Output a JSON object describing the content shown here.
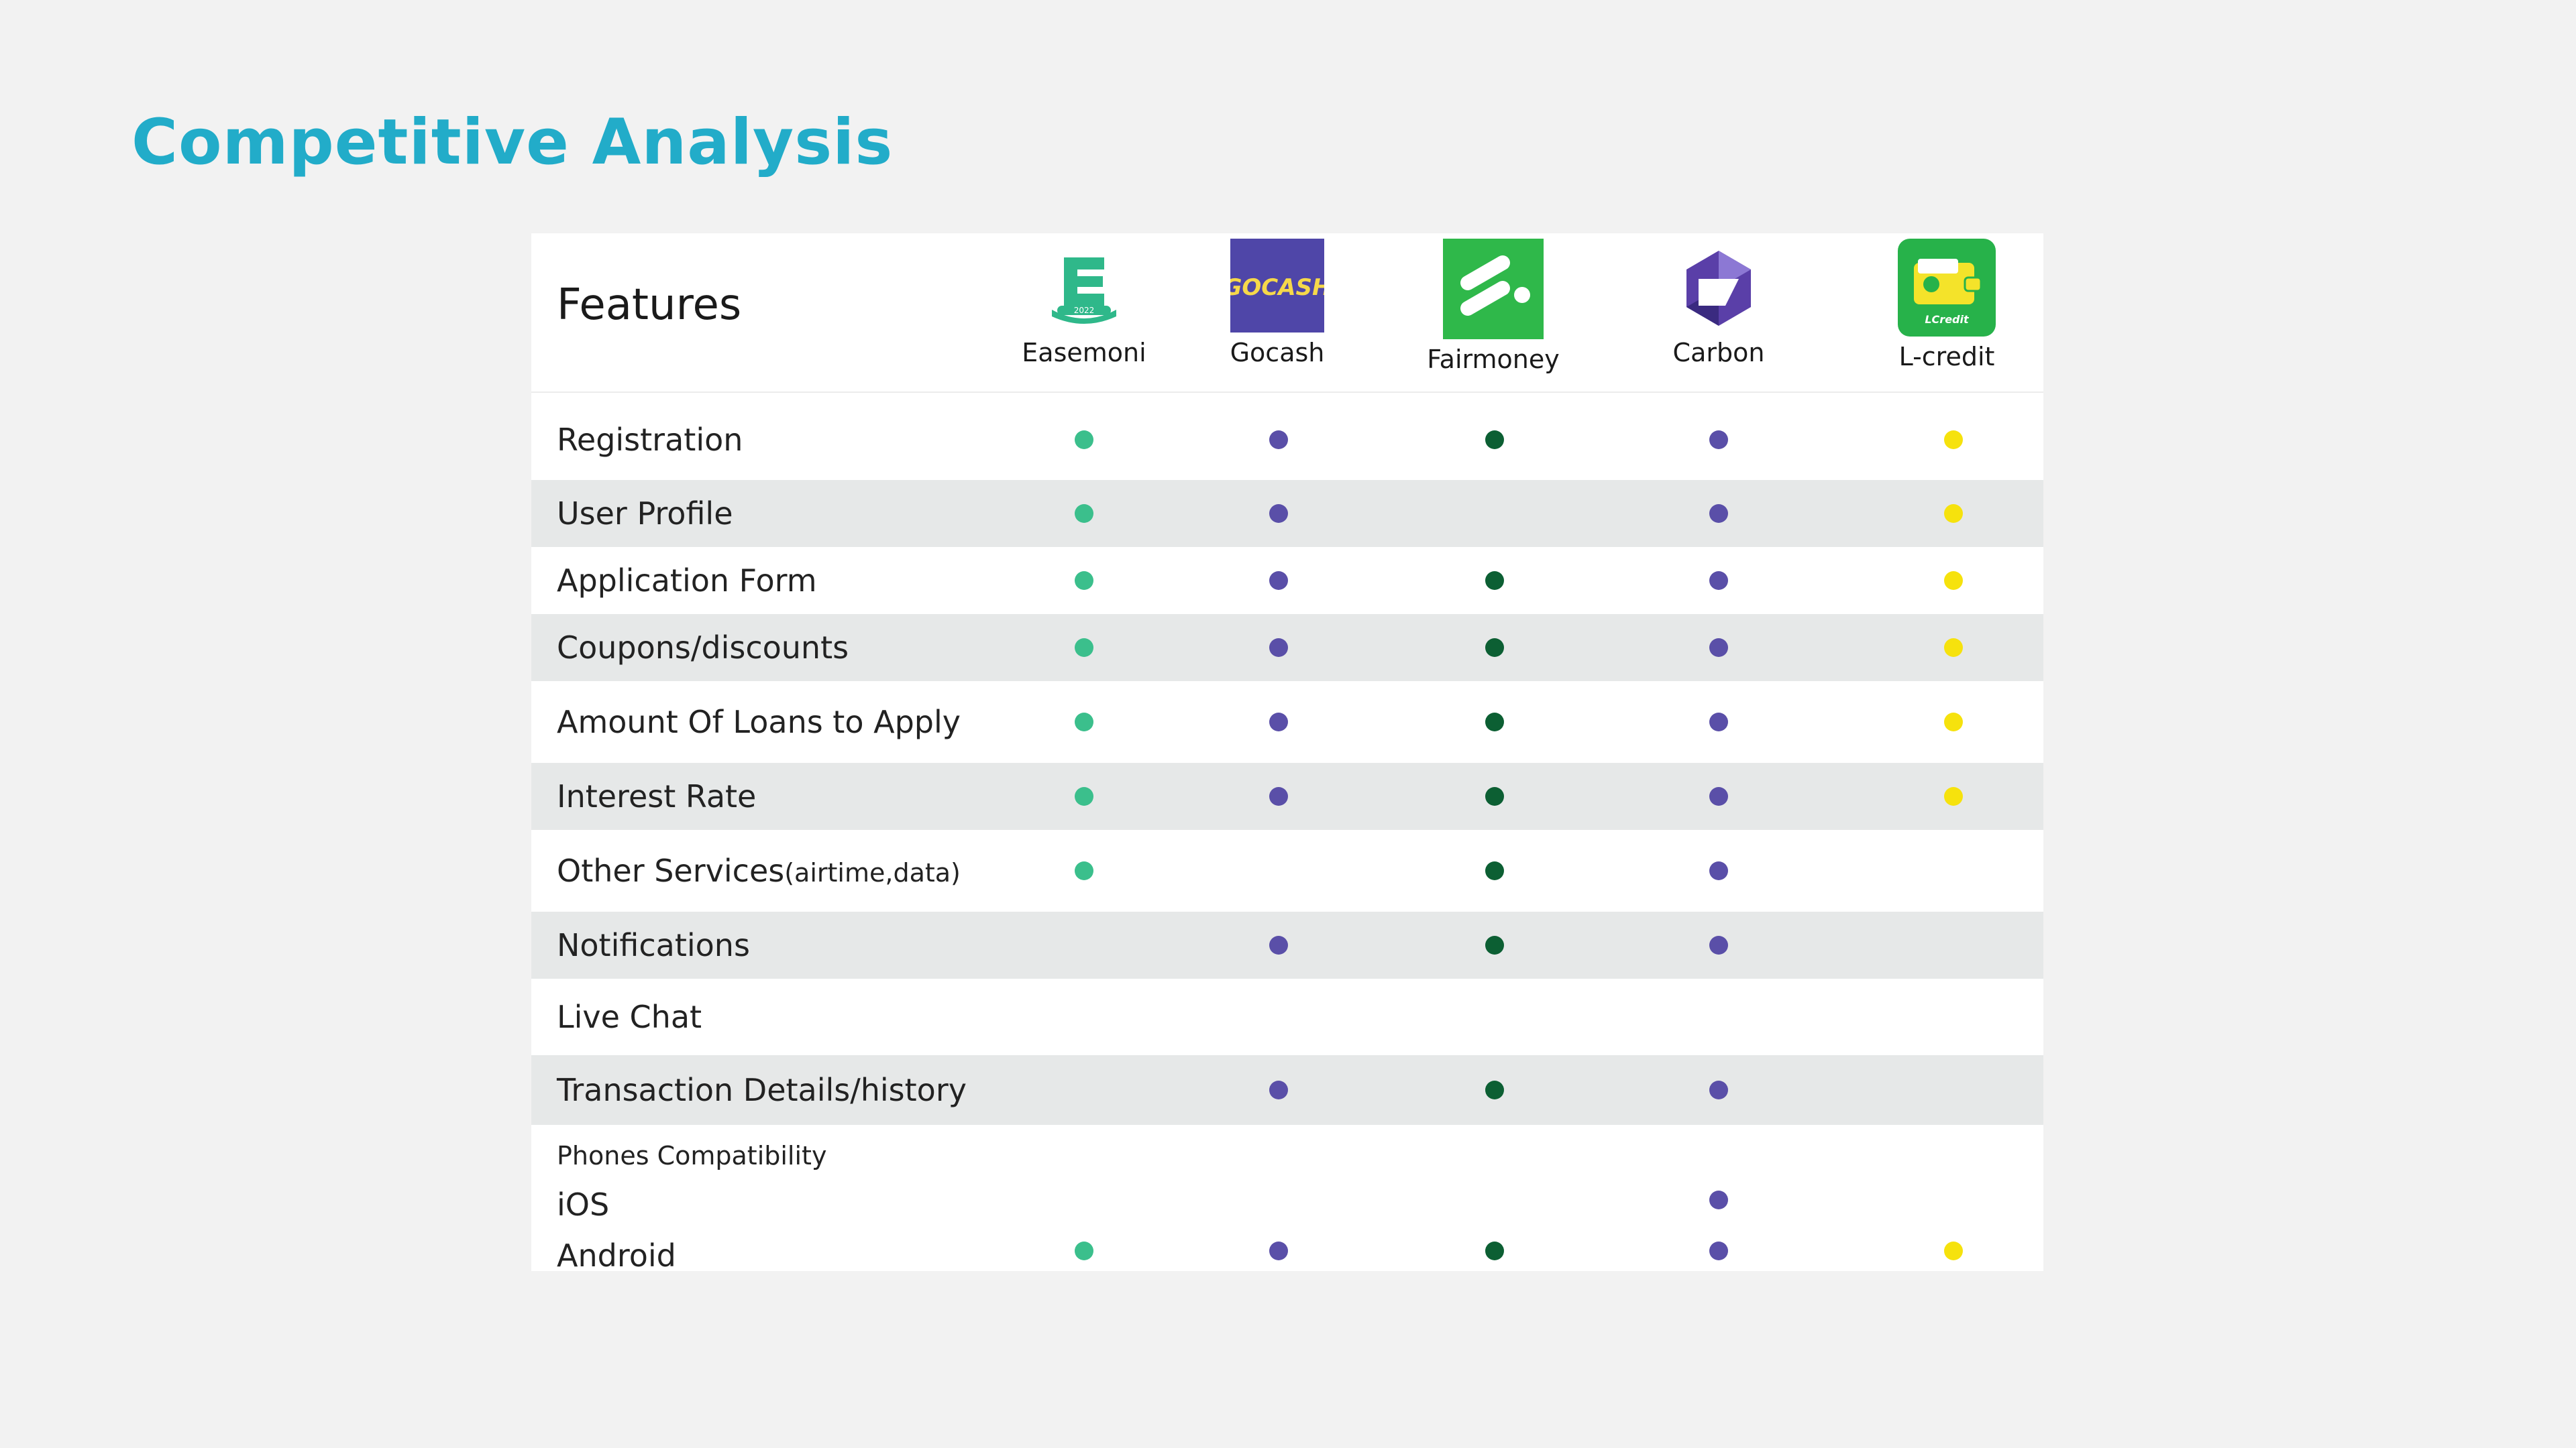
{
  "title": "Competitive Analysis",
  "table": {
    "features_heading": "Features",
    "apps": [
      {
        "name": "Easemoni",
        "icon": "easemoni-logo-icon",
        "dot_color": "#3bbf8c"
      },
      {
        "name": "Gocash",
        "icon": "gocash-logo-icon",
        "dot_color": "#5a4fa8"
      },
      {
        "name": "Fairmoney",
        "icon": "fairmoney-logo-icon",
        "dot_color": "#0c5f33"
      },
      {
        "name": "Carbon",
        "icon": "carbon-logo-icon",
        "dot_color": "#5a4fa8"
      },
      {
        "name": "L-credit",
        "icon": "lcredit-logo-icon",
        "dot_color": "#f6e20d"
      }
    ],
    "rows": [
      {
        "label": "Registration",
        "has": [
          true,
          true,
          true,
          true,
          true
        ]
      },
      {
        "label": "User Profile",
        "has": [
          true,
          true,
          false,
          true,
          true
        ]
      },
      {
        "label": "Application Form",
        "has": [
          true,
          true,
          true,
          true,
          true
        ]
      },
      {
        "label": "Coupons/discounts",
        "has": [
          true,
          true,
          true,
          true,
          true
        ]
      },
      {
        "label": "Amount Of Loans to Apply",
        "has": [
          true,
          true,
          true,
          true,
          true
        ]
      },
      {
        "label": "Interest Rate",
        "has": [
          true,
          true,
          true,
          true,
          true
        ]
      },
      {
        "label": "Other Services",
        "label_suffix": "(airtime,data)",
        "has": [
          true,
          false,
          true,
          true,
          false
        ]
      },
      {
        "label": "Notifications",
        "has": [
          false,
          true,
          true,
          true,
          false
        ]
      },
      {
        "label": "Live Chat",
        "has": [
          false,
          false,
          false,
          false,
          false
        ]
      },
      {
        "label": "Transaction Details/history",
        "has": [
          false,
          true,
          true,
          true,
          false
        ]
      }
    ],
    "phones": {
      "heading": "Phones Compatibility",
      "ios": {
        "label": "iOS",
        "has": [
          false,
          false,
          false,
          true,
          false
        ]
      },
      "android": {
        "label": "Android",
        "has": [
          true,
          true,
          true,
          true,
          true
        ]
      }
    },
    "logo_text": {
      "easemoni_year": "2022",
      "gocash": "GOCASH",
      "lcredit": "LCredit"
    }
  }
}
